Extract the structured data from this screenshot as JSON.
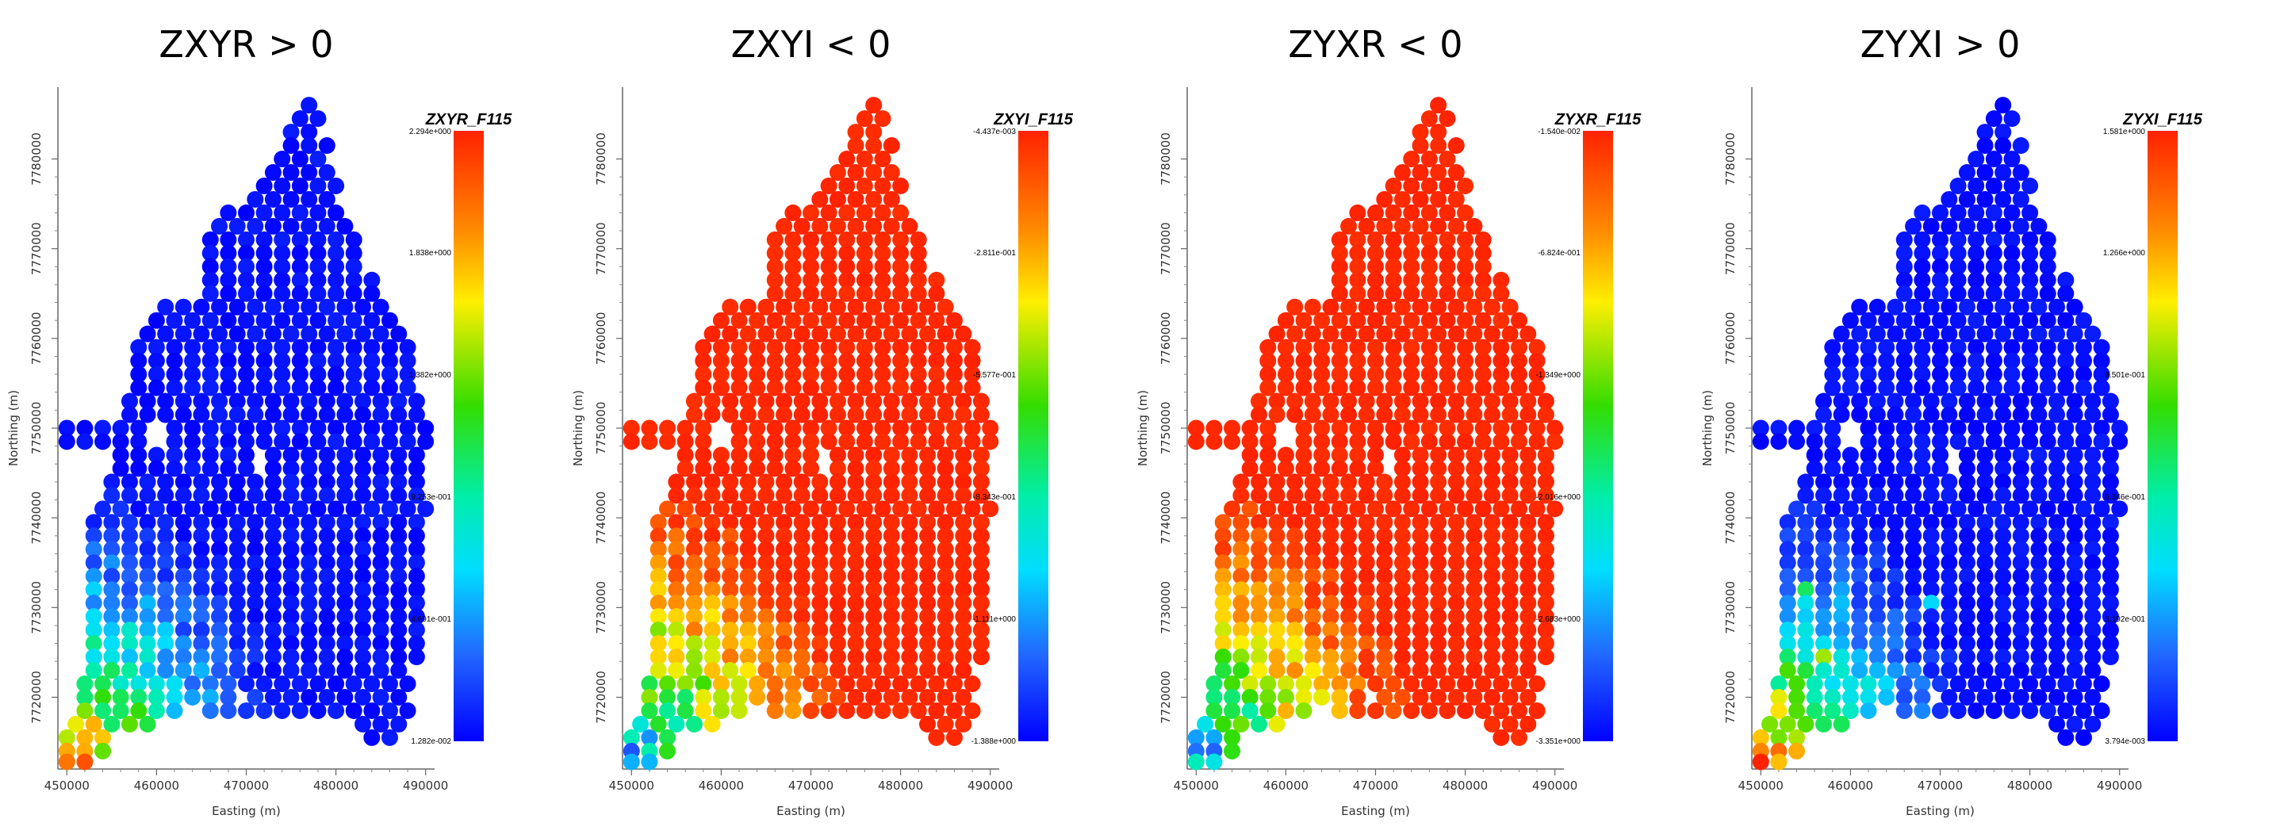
{
  "chart_data": [
    {
      "type": "scatter",
      "title": "ZXYR > 0",
      "xlabel": "Easting (m)",
      "ylabel": "Northing (m)",
      "xlim": [
        449000,
        491000
      ],
      "ylim": [
        7712000,
        7788000
      ],
      "x_ticks": [
        "450000",
        "460000",
        "470000",
        "480000",
        "490000"
      ],
      "y_ticks": [
        "7720000",
        "7730000",
        "7740000",
        "7750000",
        "7760000",
        "7770000",
        "7780000"
      ],
      "colorbar_title": "ZXYR_F115",
      "colorbar_labels": [
        "2.294e+000",
        "1.838e+000",
        "1.382e+000",
        "9.253e-001",
        "4.691e-001",
        "1.282e-002"
      ],
      "value_range": [
        0.01282,
        2.294
      ],
      "field_scale": 0.04
    },
    {
      "type": "scatter",
      "title": "ZXYI < 0",
      "xlabel": "Easting (m)",
      "ylabel": "Northing (m)",
      "xlim": [
        449000,
        491000
      ],
      "ylim": [
        7712000,
        7788000
      ],
      "x_ticks": [
        "450000",
        "460000",
        "470000",
        "480000",
        "490000"
      ],
      "y_ticks": [
        "7720000",
        "7730000",
        "7740000",
        "7750000",
        "7760000",
        "7770000",
        "7780000"
      ],
      "colorbar_title": "ZXYI_F115",
      "colorbar_labels": [
        "-4.437e-003",
        "-2.811e-001",
        "-5.577e-001",
        "-8.343e-001",
        "-1.111e+000",
        "-1.388e+000"
      ],
      "value_range": [
        -1.388,
        -0.004437
      ],
      "field_scale": 0.02
    },
    {
      "type": "scatter",
      "title": "ZYXR < 0",
      "xlabel": "Easting (m)",
      "ylabel": "Northing (m)",
      "xlim": [
        449000,
        491000
      ],
      "ylim": [
        7712000,
        7788000
      ],
      "x_ticks": [
        "450000",
        "460000",
        "470000",
        "480000",
        "490000"
      ],
      "y_ticks": [
        "7720000",
        "7730000",
        "7740000",
        "7750000",
        "7760000",
        "7770000",
        "7780000"
      ],
      "colorbar_title": "ZYXR_F115",
      "colorbar_labels": [
        "-1.540e-002",
        "-6.824e-001",
        "-1.349e+000",
        "-2.016e+000",
        "-2.683e+000",
        "-3.351e+000"
      ],
      "value_range": [
        -3.351,
        -0.0154
      ],
      "field_scale": 0.02
    },
    {
      "type": "scatter",
      "title": "ZYXI > 0",
      "xlabel": "Easting (m)",
      "ylabel": "Northing (m)",
      "xlim": [
        449000,
        491000
      ],
      "ylim": [
        7712000,
        7788000
      ],
      "x_ticks": [
        "450000",
        "460000",
        "470000",
        "480000",
        "490000"
      ],
      "y_ticks": [
        "7720000",
        "7730000",
        "7740000",
        "7750000",
        "7760000",
        "7770000",
        "7780000"
      ],
      "colorbar_title": "ZYXI_F115",
      "colorbar_labels": [
        "1.581e+000",
        "1.266e+000",
        "9.501e-001",
        "6.346e-001",
        "3.192e-001",
        "3.794e-003"
      ],
      "value_range": [
        0.003794,
        1.581
      ],
      "field_scale": 0.04
    }
  ]
}
